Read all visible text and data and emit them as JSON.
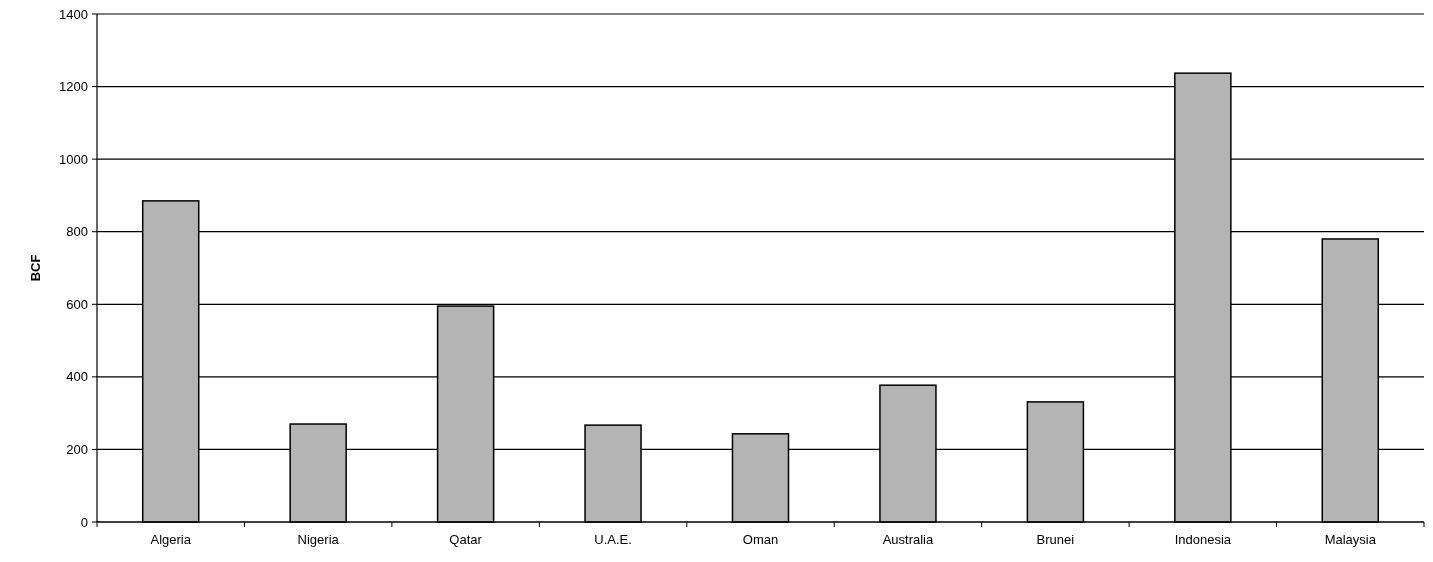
{
  "chart_data": {
    "type": "bar",
    "ylabel": "BCF",
    "categories": [
      "Algeria",
      "Nigeria",
      "Qatar",
      "U.A.E.",
      "Oman",
      "Australia",
      "Brunei",
      "Indonesia",
      "Malaysia"
    ],
    "values": [
      885,
      270,
      595,
      267,
      243,
      377,
      331,
      1237,
      780
    ],
    "color": "#b4b4b4",
    "ylim": [
      0,
      1400
    ],
    "yticks": [
      0,
      200,
      400,
      600,
      800,
      1000,
      1200,
      1400
    ],
    "grid": "y"
  }
}
